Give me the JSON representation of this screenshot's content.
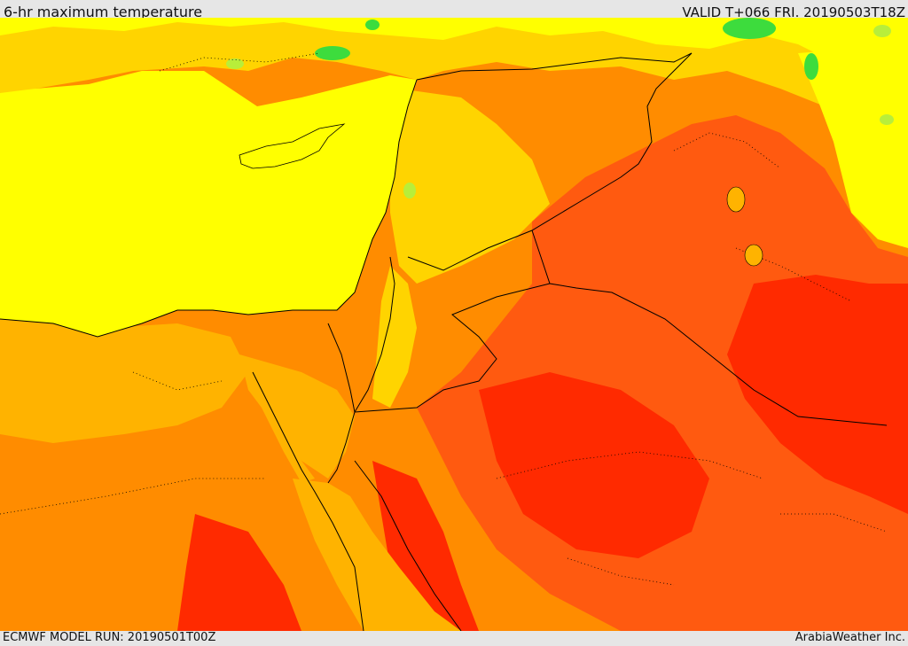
{
  "header": {
    "title": "6-hr maximum temperature",
    "valid": "VALID T+066 FRI. 20190503T18Z"
  },
  "footer": {
    "model_run": "ECMWF MODEL RUN: 20190501T00Z",
    "brand": "ArabiaWeather Inc."
  },
  "map": {
    "colors": {
      "green": "#3ddc3d",
      "light_green": "#b8ee3a",
      "yellow": "#ffff00",
      "yellow_orange": "#ffd400",
      "light_orange": "#ffb300",
      "orange": "#ff8c00",
      "red_orange": "#ff5a10",
      "red": "#ff2a00",
      "border": "#000000"
    }
  }
}
